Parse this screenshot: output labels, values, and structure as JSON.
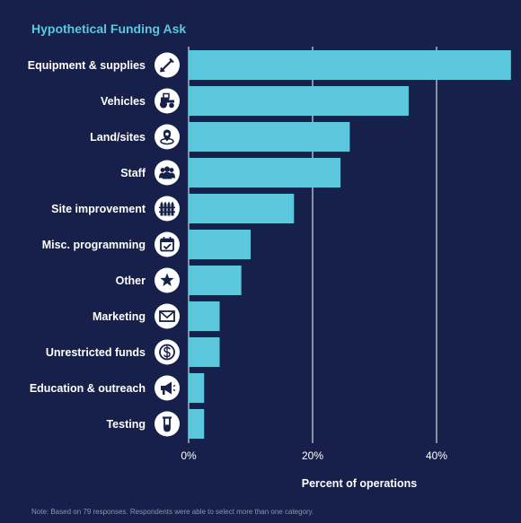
{
  "chart_data": {
    "type": "bar",
    "orientation": "horizontal",
    "title": "Hypothetical Funding Ask",
    "xlabel": "Percent of operations",
    "ylabel": "",
    "xlim": [
      0,
      52
    ],
    "xticks": [
      "0%",
      "20%",
      "40%"
    ],
    "xtick_values": [
      0,
      20,
      40
    ],
    "grid": true,
    "bar_color": "#5bc8de",
    "categories": [
      "Equipment & supplies",
      "Vehicles",
      "Land/sites",
      "Staff",
      "Site improvement",
      "Misc. programming",
      "Other",
      "Marketing",
      "Unrestricted funds",
      "Education & outreach",
      "Testing"
    ],
    "values": [
      52,
      35.5,
      26,
      24.5,
      17,
      10,
      8.5,
      5,
      5,
      2.5,
      2.5
    ],
    "icons": [
      "shovel-icon",
      "tractor-icon",
      "location-pin-icon",
      "people-icon",
      "fence-icon",
      "calendar-check-icon",
      "star-icon",
      "envelope-icon",
      "dollar-icon",
      "megaphone-icon",
      "test-tube-icon"
    ],
    "note": "Note: Based on 79 responses. Respondents were able to select more than one category."
  }
}
